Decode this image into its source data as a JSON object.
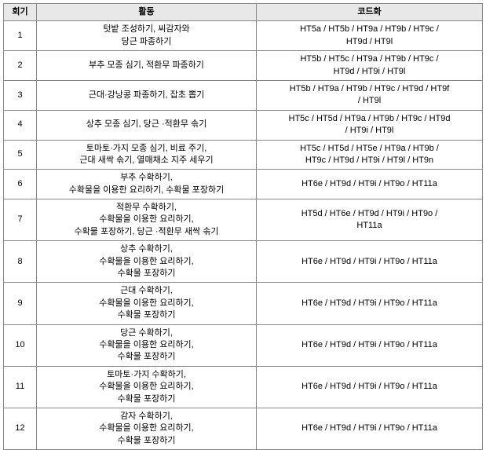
{
  "headers": {
    "num": "회기",
    "activity": "활동",
    "code": "코드화"
  },
  "rows": [
    {
      "num": "1",
      "activity_lines": [
        "텃밭 조성하기, 씨감자와",
        "당근 파종하기"
      ],
      "code_lines": [
        "HT5a / HT5b / HT9a / HT9b / HT9c /",
        "HT9d / HT9l"
      ]
    },
    {
      "num": "2",
      "activity_lines": [
        "부추 모종 심기, 적환무 파종하기"
      ],
      "code_lines": [
        "HT5b / HT5c / HT9a / HT9b / HT9c /",
        "HT9d / HT9i / HT9l"
      ]
    },
    {
      "num": "3",
      "activity_lines": [
        "근대·강낭콩 파종하기, 잡초 뽑기"
      ],
      "code_lines": [
        "HT5b / HT9a / HT9b / HT9c / HT9d / HT9f",
        "/ HT9l"
      ]
    },
    {
      "num": "4",
      "activity_lines": [
        "상추 모종 심기, 당근 ·적환무 솎기"
      ],
      "code_lines": [
        "HT5c / HT5d / HT9a / HT9b / HT9c / HT9d",
        "/ HT9i / HT9l"
      ]
    },
    {
      "num": "5",
      "activity_lines": [
        "토마토·가지 모종 심기, 비료 주기,",
        "근대 새싹 솎기, 열매채소 지주 세우기"
      ],
      "code_lines": [
        "HT5c / HT5d / HT5e / HT9a / HT9b /",
        "HT9c / HT9d / HT9i / HT9l / HT9n"
      ]
    },
    {
      "num": "6",
      "activity_lines": [
        "부추 수확하기,",
        "수확물을 이용한 요리하기, 수확물 포장하기"
      ],
      "code_lines": [
        "HT6e / HT9d / HT9i / HT9o / HT11a"
      ]
    },
    {
      "num": "7",
      "activity_lines": [
        "적환무 수확하기,",
        "수확물을 이용한 요리하기,",
        "수확물 포장하기, 당근 ·적환무 새싹 솎기"
      ],
      "code_lines": [
        "HT5d / HT6e / HT9d / HT9i / HT9o /",
        "HT11a"
      ]
    },
    {
      "num": "8",
      "activity_lines": [
        "상추 수확하기,",
        "수확물을 이용한 요리하기,",
        "수확물 포장하기"
      ],
      "code_lines": [
        "HT6e / HT9d / HT9i / HT9o / HT11a"
      ]
    },
    {
      "num": "9",
      "activity_lines": [
        "근대 수확하기,",
        "수확물을 이용한 요리하기,",
        "수확물 포장하기"
      ],
      "code_lines": [
        "HT6e / HT9d / HT9i / HT9o / HT11a"
      ]
    },
    {
      "num": "10",
      "activity_lines": [
        "당근 수확하기,",
        "수확물을 이용한 요리하기,",
        "수확물 포장하기"
      ],
      "code_lines": [
        "HT6e / HT9d / HT9i / HT9o / HT11a"
      ]
    },
    {
      "num": "11",
      "activity_lines": [
        "토마토·가지 수확하기,",
        "수확물을 이용한 요리하기,",
        "수확물 포장하기"
      ],
      "code_lines": [
        "HT6e / HT9d / HT9i / HT9o / HT11a"
      ]
    },
    {
      "num": "12",
      "activity_lines": [
        "감자 수확하기,",
        "수확물을 이용한 요리하기,",
        "수확물 포장하기"
      ],
      "code_lines": [
        "HT6e / HT9d / HT9i / HT9o / HT11a"
      ]
    }
  ]
}
